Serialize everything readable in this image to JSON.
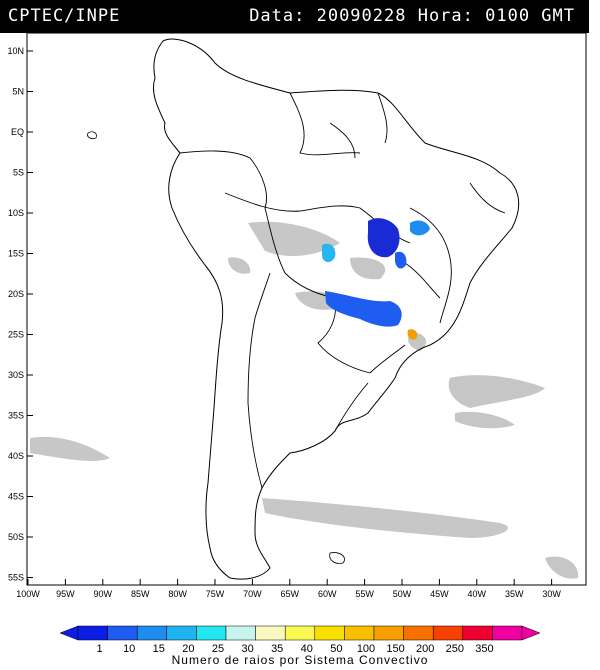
{
  "header": {
    "org": "CPTEC/INPE",
    "stamp": "Data: 20090228 Hora: 0100 GMT"
  },
  "map": {
    "lat_labels": [
      "10N",
      "5N",
      "EQ",
      "5S",
      "10S",
      "15S",
      "20S",
      "25S",
      "30S",
      "35S",
      "40S",
      "45S",
      "50S",
      "55S"
    ],
    "lon_labels": [
      "100W",
      "95W",
      "90W",
      "85W",
      "80W",
      "75W",
      "70W",
      "65W",
      "60W",
      "55W",
      "50W",
      "45W",
      "40W",
      "35W",
      "30W"
    ],
    "colors": {
      "land_outline": "#000000",
      "cloud_gray": "#bdbdbd",
      "storm_dark_blue": "#1a2bd6",
      "storm_blue": "#1f5cf0",
      "storm_light_blue": "#29b6f0",
      "storm_orange": "#f0a000"
    }
  },
  "legend": {
    "values": [
      "1",
      "10",
      "15",
      "20",
      "25",
      "30",
      "35",
      "40",
      "50",
      "100",
      "150",
      "200",
      "250",
      "350"
    ],
    "colors": [
      "#0a1ee6",
      "#1f5cf0",
      "#1f8cf0",
      "#1fb4f0",
      "#22e6f0",
      "#c8f4f0",
      "#f8f8c0",
      "#f8f850",
      "#f8e000",
      "#f8c000",
      "#f8a000",
      "#f87000",
      "#f84000",
      "#f00030",
      "#f000a0"
    ],
    "caption": "Numero de raios por Sistema Convectivo"
  }
}
